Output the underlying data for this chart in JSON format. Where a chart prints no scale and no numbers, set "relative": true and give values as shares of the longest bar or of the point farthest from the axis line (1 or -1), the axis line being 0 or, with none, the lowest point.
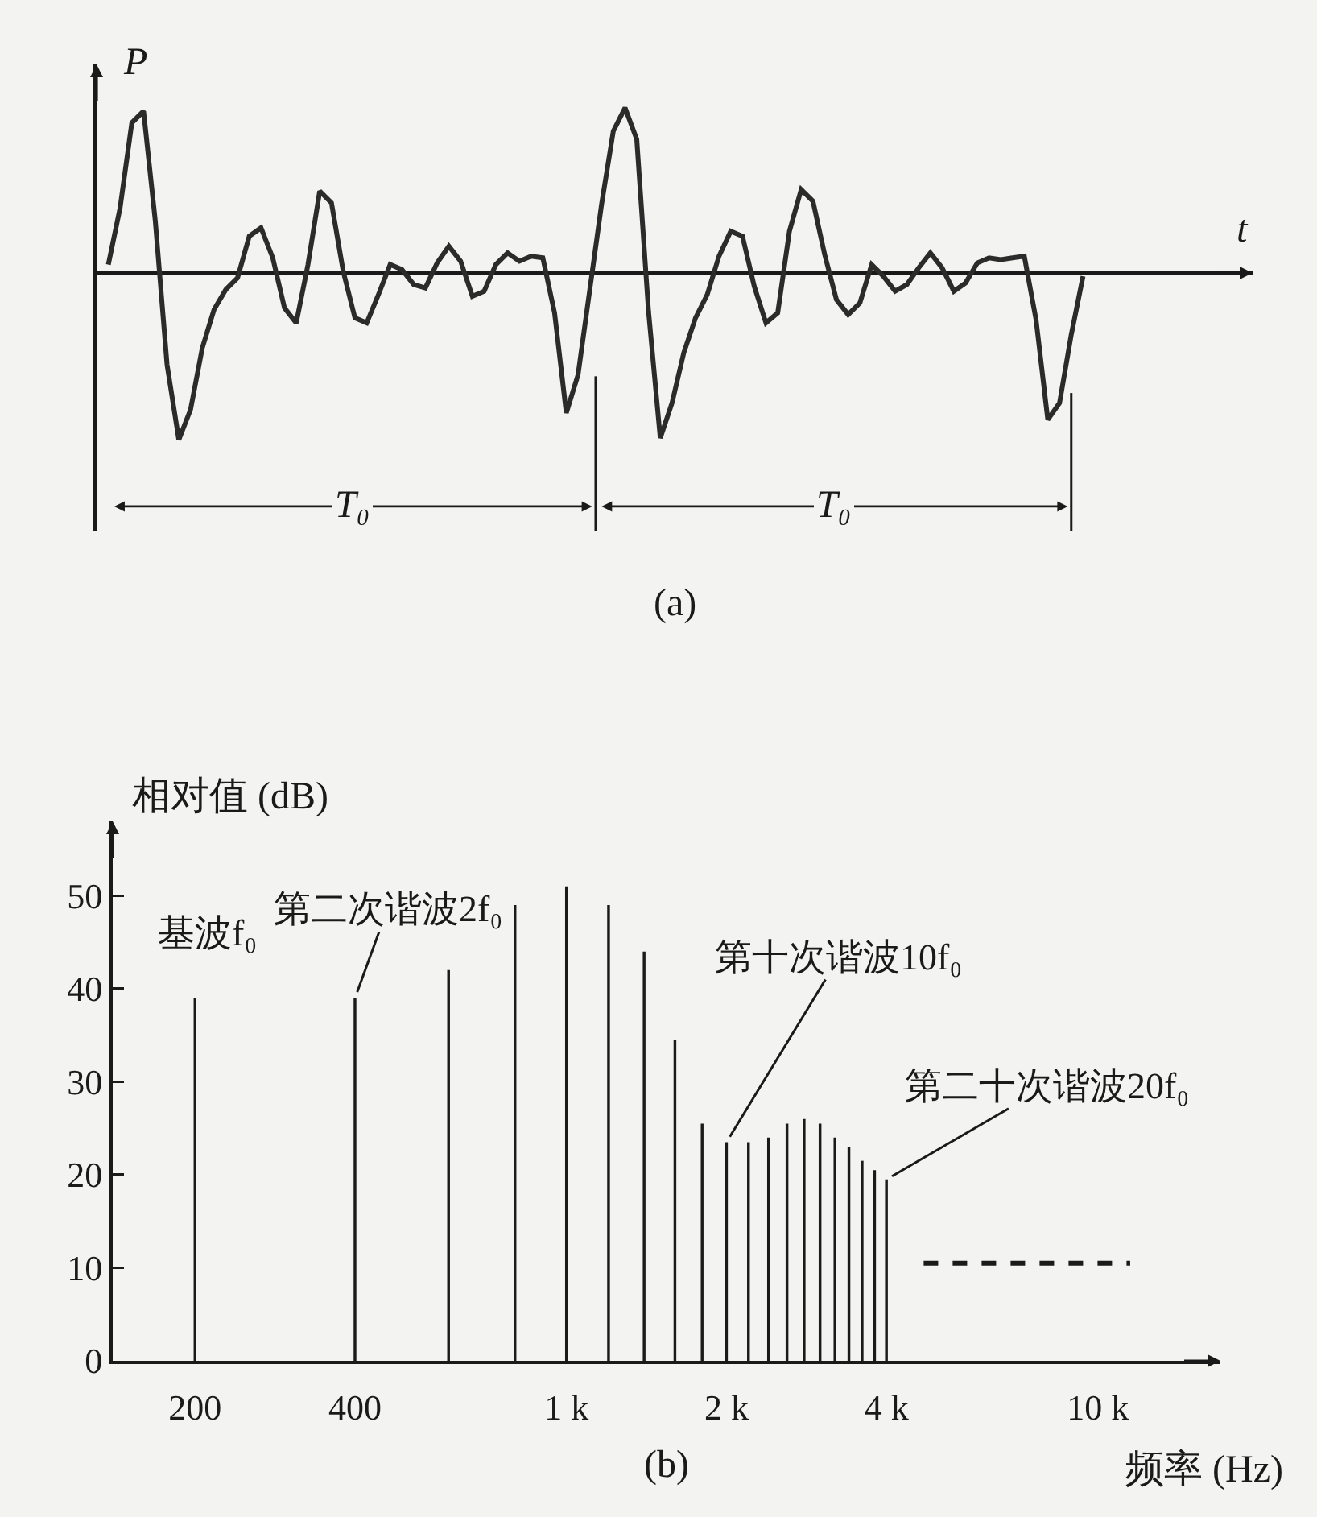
{
  "chart_data": [
    {
      "type": "line",
      "relative": true,
      "tick_labels": false,
      "xlabel": "t",
      "ylabel": "P",
      "color": "#2b2b2b",
      "categories": [
        null,
        null,
        null,
        null,
        null,
        null,
        null,
        null,
        null,
        null,
        null,
        null,
        null,
        null,
        null,
        null,
        null,
        null,
        null,
        null,
        null,
        null,
        null,
        null,
        null,
        null,
        null,
        null,
        null,
        null,
        null,
        null,
        null,
        null,
        null,
        null,
        null,
        null,
        null,
        null,
        null,
        null,
        null,
        null,
        null,
        null,
        null,
        null,
        null,
        null,
        null,
        null,
        null,
        null,
        null,
        null,
        null,
        null,
        null,
        null,
        null,
        null,
        null,
        null,
        null,
        null,
        null,
        null,
        null,
        null,
        null,
        null,
        null,
        null,
        null,
        null,
        null,
        null,
        null,
        null,
        null,
        null,
        null,
        null
      ],
      "values": [
        0.05,
        0.39,
        0.9,
        0.97,
        0.31,
        -0.55,
        -1,
        -0.82,
        -0.45,
        -0.22,
        -0.1,
        -0.03,
        0.22,
        0.27,
        0.09,
        -0.21,
        -0.3,
        0.05,
        0.49,
        0.42,
        0.01,
        -0.27,
        -0.3,
        -0.13,
        0.05,
        0.02,
        -0.07,
        -0.09,
        0.06,
        0.16,
        0.07,
        -0.14,
        -0.11,
        0.05,
        0.12,
        0.07,
        0.1,
        0.09,
        -0.24,
        -0.84,
        -0.61,
        -0.1,
        0.41,
        0.85,
        0.99,
        0.8,
        -0.23,
        -0.99,
        -0.78,
        -0.48,
        -0.27,
        -0.13,
        0.1,
        0.25,
        0.22,
        -0.08,
        -0.3,
        -0.24,
        0.25,
        0.5,
        0.43,
        0.11,
        -0.16,
        -0.25,
        -0.18,
        0.05,
        -0.02,
        -0.11,
        -0.07,
        0.03,
        0.12,
        0.03,
        -0.11,
        -0.06,
        0.06,
        0.09,
        0.08,
        0.09,
        0.1,
        -0.28,
        -0.88,
        -0.78,
        -0.37,
        -0.02
      ],
      "annotations": [
        "T₀",
        "T₀",
        "(a)"
      ]
    },
    {
      "type": "bar",
      "log": "x",
      "xlabel": "频率 (Hz)",
      "ylabel": "相对值 (dB)",
      "xlim": [
        140,
        17000
      ],
      "xticks": [
        200,
        400,
        {
          "value": 1000,
          "label": "1 k"
        },
        {
          "value": 2000,
          "label": "2 k"
        },
        {
          "value": 4000,
          "label": "4 k"
        },
        {
          "value": 10000,
          "label": "10 k"
        }
      ],
      "ylim": [
        0,
        58
      ],
      "yticks": [
        0,
        10,
        20,
        30,
        40,
        50
      ],
      "series": [
        {
          "type": "bar",
          "color": "#1a1a1a",
          "x": [
            200,
            400,
            600,
            800,
            1000,
            1200,
            1400,
            1600,
            1800,
            2000,
            2200,
            2400,
            2600,
            2800,
            3000,
            3200,
            3400,
            3600,
            3800,
            4000
          ],
          "values": [
            39,
            39,
            42,
            49,
            51,
            49,
            44,
            34.5,
            25.5,
            23.5,
            23.5,
            24,
            25.5,
            26,
            25.5,
            24,
            23,
            21.5,
            20.5,
            19.5
          ]
        },
        {
          "type": "line",
          "color": "#1a1a1a",
          "line_style": "dashed",
          "x": [
            4700,
            11500
          ],
          "values": [
            10.5,
            10.5
          ]
        }
      ],
      "annotations": [
        {
          "text": "基波f₀",
          "x": 200,
          "y": 39
        },
        {
          "text": "第二次谐波2f₀",
          "x": 400,
          "y": 39
        },
        {
          "text": "第十次谐波10f₀",
          "x": 2000,
          "y": 23.5
        },
        {
          "text": "第二十次谐波20f₀",
          "x": 4000,
          "y": 19.5
        },
        "(b)"
      ]
    }
  ]
}
